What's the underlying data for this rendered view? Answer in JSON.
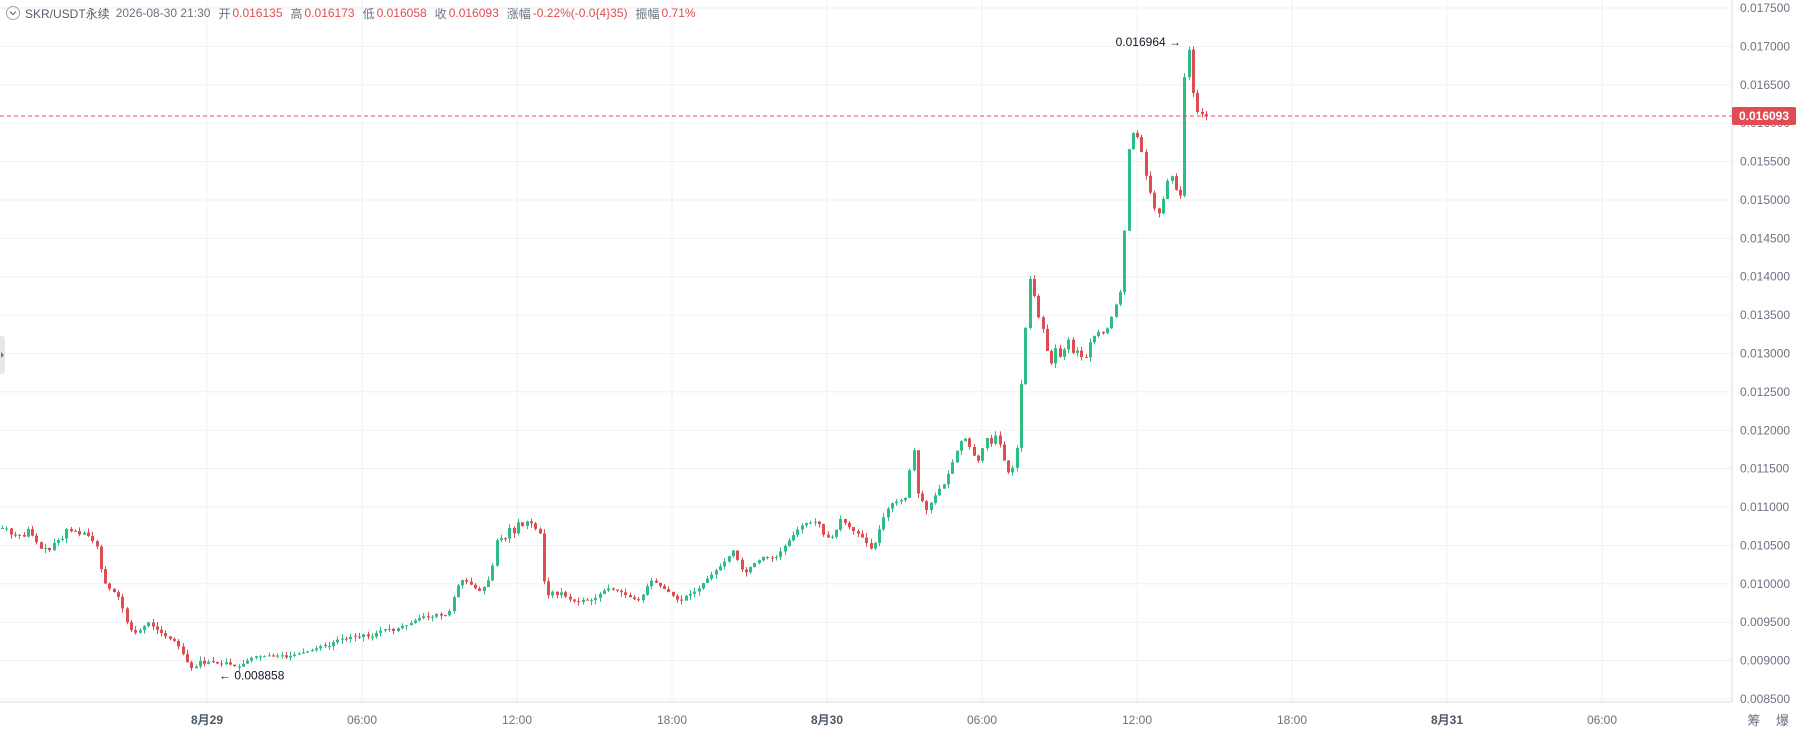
{
  "header": {
    "symbol": "SKR/USDT永续",
    "datetime": "2026-08-30 21:30",
    "open_label": "开",
    "open": "0.016135",
    "high_label": "高",
    "high": "0.016173",
    "low_label": "低",
    "low": "0.016058",
    "close_label": "收",
    "close": "0.016093",
    "change_label": "涨幅",
    "change": "-0.22%(-0.0{4}35)",
    "amplitude_label": "振幅",
    "amplitude": "0.71%"
  },
  "corner_label": "筹 爆",
  "colors": {
    "up": "#2ebd85",
    "down": "#e04c54",
    "grid": "#f0f1f3",
    "axis_text": "#6b7280",
    "price_line": "#e04c54"
  },
  "chart_data": {
    "type": "candlestick",
    "y_axis": {
      "position": "right",
      "min": 0.0085,
      "max": 0.0175,
      "step": 0.0005,
      "tick_labels": [
        "0.017500",
        "0.017000",
        "0.016500",
        "0.016000",
        "0.015500",
        "0.015000",
        "0.014500",
        "0.014000",
        "0.013500",
        "0.013000",
        "0.012500",
        "0.012000",
        "0.011500",
        "0.011000",
        "0.010500",
        "0.010000",
        "0.009500",
        "0.009000",
        "0.008500"
      ]
    },
    "x_axis": {
      "tick_labels": [
        "8月29",
        "06:00",
        "12:00",
        "18:00",
        "8月30",
        "06:00",
        "12:00",
        "18:00",
        "8月31",
        "06:00"
      ],
      "tick_times": [
        "08-29 00:00",
        "08-29 06:00",
        "08-29 12:00",
        "08-29 18:00",
        "08-30 00:00",
        "08-30 06:00",
        "08-30 12:00",
        "08-30 18:00",
        "08-31 00:00",
        "08-31 06:00"
      ]
    },
    "interval": "15m",
    "last_price": "0.016093",
    "annotations": {
      "high": "0.016964",
      "low": "0.008858"
    },
    "grid": true,
    "path_points": [
      [
        0,
        0.01073
      ],
      [
        8,
        0.01072
      ],
      [
        12,
        0.0106
      ],
      [
        18,
        0.01066
      ],
      [
        22,
        0.01058
      ],
      [
        28,
        0.01072
      ],
      [
        31,
        0.01065
      ],
      [
        36,
        0.01055
      ],
      [
        41,
        0.01045
      ],
      [
        44,
        0.0105
      ],
      [
        47,
        0.0104
      ],
      [
        50,
        0.01045
      ],
      [
        53,
        0.01052
      ],
      [
        57,
        0.0106
      ],
      [
        60,
        0.0105
      ],
      [
        63,
        0.01062
      ],
      [
        66,
        0.01072
      ],
      [
        70,
        0.01068
      ],
      [
        74,
        0.0107
      ],
      [
        78,
        0.01066
      ],
      [
        81,
        0.01062
      ],
      [
        85,
        0.01069
      ],
      [
        90,
        0.01058
      ],
      [
        96,
        0.01052
      ],
      [
        99,
        0.01035
      ],
      [
        102,
        0.0101
      ],
      [
        106,
        0.00998
      ],
      [
        110,
        0.00993
      ],
      [
        115,
        0.00988
      ],
      [
        120,
        0.0098
      ],
      [
        124,
        0.0096
      ],
      [
        128,
        0.00945
      ],
      [
        132,
        0.00938
      ],
      [
        136,
        0.00936
      ],
      [
        140,
        0.0094
      ],
      [
        144,
        0.00945
      ],
      [
        148,
        0.0095
      ],
      [
        152,
        0.00945
      ],
      [
        157,
        0.0094
      ],
      [
        162,
        0.00935
      ],
      [
        166,
        0.00931
      ],
      [
        170,
        0.00928
      ],
      [
        175,
        0.00925
      ],
      [
        180,
        0.00915
      ],
      [
        184,
        0.00905
      ],
      [
        188,
        0.00895
      ],
      [
        192,
        0.00889
      ],
      [
        196,
        0.00893
      ],
      [
        200,
        0.009
      ],
      [
        205,
        0.00895
      ],
      [
        210,
        0.009
      ],
      [
        215,
        0.00897
      ],
      [
        220,
        0.00895
      ],
      [
        226,
        0.00898
      ],
      [
        232,
        0.00893
      ],
      [
        238,
        0.00892
      ],
      [
        244,
        0.00897
      ],
      [
        250,
        0.00903
      ],
      [
        256,
        0.00906
      ],
      [
        262,
        0.00905
      ],
      [
        268,
        0.00907
      ],
      [
        274,
        0.00905
      ],
      [
        280,
        0.00908
      ],
      [
        286,
        0.00904
      ],
      [
        292,
        0.00907
      ],
      [
        298,
        0.00909
      ],
      [
        304,
        0.00911
      ],
      [
        310,
        0.00913
      ],
      [
        316,
        0.00916
      ],
      [
        322,
        0.0092
      ],
      [
        328,
        0.00918
      ],
      [
        334,
        0.00925
      ],
      [
        340,
        0.00929
      ],
      [
        346,
        0.00928
      ],
      [
        352,
        0.00932
      ],
      [
        358,
        0.0093
      ],
      [
        364,
        0.00935
      ],
      [
        370,
        0.00929
      ],
      [
        376,
        0.00936
      ],
      [
        382,
        0.0094
      ],
      [
        388,
        0.00942
      ],
      [
        394,
        0.00938
      ],
      [
        400,
        0.00945
      ],
      [
        406,
        0.00946
      ],
      [
        412,
        0.0095
      ],
      [
        418,
        0.00955
      ],
      [
        424,
        0.00958
      ],
      [
        430,
        0.00955
      ],
      [
        436,
        0.00961
      ],
      [
        442,
        0.00958
      ],
      [
        448,
        0.0096
      ],
      [
        452,
        0.00975
      ],
      [
        456,
        0.00995
      ],
      [
        462,
        0.01005
      ],
      [
        468,
        0.01002
      ],
      [
        474,
        0.00995
      ],
      [
        480,
        0.0099
      ],
      [
        486,
        0.01
      ],
      [
        490,
        0.0101
      ],
      [
        494,
        0.01035
      ],
      [
        498,
        0.0107
      ],
      [
        502,
        0.01055
      ],
      [
        506,
        0.0106
      ],
      [
        510,
        0.01075
      ],
      [
        514,
        0.01065
      ],
      [
        518,
        0.0108
      ],
      [
        522,
        0.01075
      ],
      [
        527,
        0.01082
      ],
      [
        532,
        0.01078
      ],
      [
        536,
        0.0107
      ],
      [
        540,
        0.01065
      ],
      [
        544,
        0.01
      ],
      [
        548,
        0.00985
      ],
      [
        552,
        0.0099
      ],
      [
        557,
        0.00985
      ],
      [
        562,
        0.0099
      ],
      [
        566,
        0.00982
      ],
      [
        572,
        0.00978
      ],
      [
        578,
        0.00976
      ],
      [
        584,
        0.0098
      ],
      [
        590,
        0.00978
      ],
      [
        596,
        0.00982
      ],
      [
        602,
        0.0099
      ],
      [
        608,
        0.00994
      ],
      [
        614,
        0.00992
      ],
      [
        620,
        0.0099
      ],
      [
        626,
        0.00985
      ],
      [
        632,
        0.00981
      ],
      [
        638,
        0.00978
      ],
      [
        644,
        0.00988
      ],
      [
        648,
        0.01
      ],
      [
        652,
        0.01005
      ],
      [
        657,
        0.01
      ],
      [
        662,
        0.00995
      ],
      [
        668,
        0.0099
      ],
      [
        674,
        0.00983
      ],
      [
        680,
        0.00976
      ],
      [
        686,
        0.00985
      ],
      [
        692,
        0.00988
      ],
      [
        698,
        0.00993
      ],
      [
        704,
        0.01003
      ],
      [
        710,
        0.0101
      ],
      [
        716,
        0.01018
      ],
      [
        722,
        0.01025
      ],
      [
        728,
        0.01035
      ],
      [
        734,
        0.01045
      ],
      [
        740,
        0.0102
      ],
      [
        746,
        0.01015
      ],
      [
        752,
        0.01025
      ],
      [
        758,
        0.0103
      ],
      [
        764,
        0.01036
      ],
      [
        770,
        0.01033
      ],
      [
        776,
        0.01035
      ],
      [
        782,
        0.01045
      ],
      [
        788,
        0.01055
      ],
      [
        794,
        0.01065
      ],
      [
        800,
        0.01075
      ],
      [
        806,
        0.01079
      ],
      [
        812,
        0.0108
      ],
      [
        818,
        0.01082
      ],
      [
        822,
        0.01065
      ],
      [
        828,
        0.0106
      ],
      [
        834,
        0.01062
      ],
      [
        840,
        0.01085
      ],
      [
        846,
        0.01078
      ],
      [
        852,
        0.0107
      ],
      [
        858,
        0.01065
      ],
      [
        864,
        0.01058
      ],
      [
        870,
        0.01045
      ],
      [
        876,
        0.01055
      ],
      [
        880,
        0.01075
      ],
      [
        886,
        0.01095
      ],
      [
        892,
        0.01105
      ],
      [
        898,
        0.01108
      ],
      [
        904,
        0.0111
      ],
      [
        908,
        0.01118
      ],
      [
        912,
        0.0121
      ],
      [
        916,
        0.0112
      ],
      [
        920,
        0.01115
      ],
      [
        926,
        0.01095
      ],
      [
        932,
        0.01108
      ],
      [
        938,
        0.01122
      ],
      [
        944,
        0.0113
      ],
      [
        950,
        0.0115
      ],
      [
        955,
        0.01168
      ],
      [
        960,
        0.01185
      ],
      [
        966,
        0.0119
      ],
      [
        972,
        0.0117
      ],
      [
        978,
        0.0116
      ],
      [
        982,
        0.01175
      ],
      [
        986,
        0.01192
      ],
      [
        990,
        0.0118
      ],
      [
        996,
        0.01195
      ],
      [
        1000,
        0.0118
      ],
      [
        1004,
        0.0116
      ],
      [
        1008,
        0.01145
      ],
      [
        1012,
        0.0115
      ],
      [
        1016,
        0.0116
      ],
      [
        1020,
        0.01245
      ],
      [
        1024,
        0.013
      ],
      [
        1028,
        0.01395
      ],
      [
        1032,
        0.014
      ],
      [
        1036,
        0.0135
      ],
      [
        1040,
        0.01345
      ],
      [
        1044,
        0.01325
      ],
      [
        1048,
        0.01295
      ],
      [
        1052,
        0.01285
      ],
      [
        1056,
        0.0131
      ],
      [
        1060,
        0.01295
      ],
      [
        1064,
        0.01305
      ],
      [
        1068,
        0.0132
      ],
      [
        1072,
        0.013
      ],
      [
        1076,
        0.01305
      ],
      [
        1080,
        0.013
      ],
      [
        1084,
        0.01285
      ],
      [
        1088,
        0.0131
      ],
      [
        1092,
        0.0132
      ],
      [
        1096,
        0.01325
      ],
      [
        1100,
        0.0133
      ],
      [
        1104,
        0.01325
      ],
      [
        1108,
        0.01335
      ],
      [
        1112,
        0.0135
      ],
      [
        1116,
        0.01365
      ],
      [
        1120,
        0.0138
      ],
      [
        1124,
        0.0145
      ],
      [
        1127,
        0.0155
      ],
      [
        1130,
        0.0158
      ],
      [
        1134,
        0.0159
      ],
      [
        1138,
        0.0158
      ],
      [
        1142,
        0.0156
      ],
      [
        1146,
        0.0153
      ],
      [
        1150,
        0.0151
      ],
      [
        1154,
        0.0149
      ],
      [
        1158,
        0.0148
      ],
      [
        1162,
        0.01495
      ],
      [
        1166,
        0.0152
      ],
      [
        1170,
        0.01535
      ],
      [
        1174,
        0.01525
      ],
      [
        1178,
        0.015
      ],
      [
        1182,
        0.0151
      ],
      [
        1185,
        0.0169
      ],
      [
        1189,
        0.01696
      ],
      [
        1193,
        0.0164
      ],
      [
        1197,
        0.01615
      ],
      [
        1201,
        0.01612
      ],
      [
        1205,
        0.0161
      ],
      [
        1209,
        0.01609
      ]
    ]
  }
}
